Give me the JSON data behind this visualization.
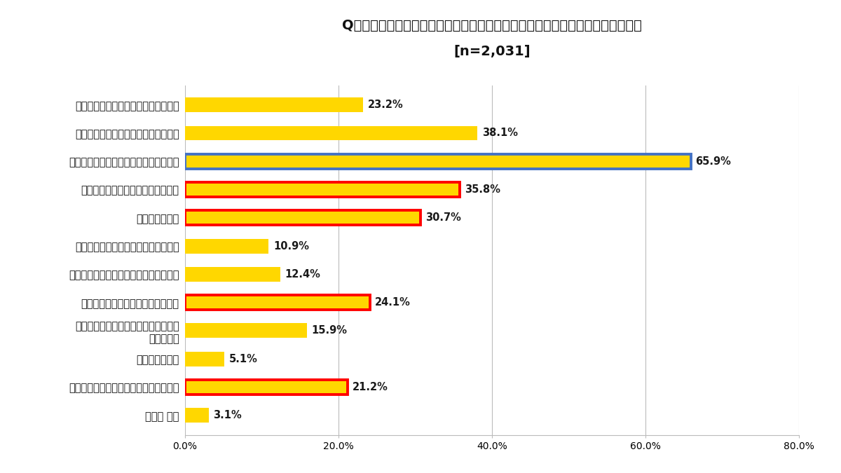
{
  "title_line1": "Q：あなたは、どのような目的でタイミーで副業をしていますか？（複数選択）",
  "title_line2": "[n=2,031]",
  "categories": [
    "副業の収入を、貯蓄や投資に使うため",
    "副業の収入を、趣味や娯楽に使うため",
    "副業の収入を、生活費の足しにするため",
    "空いた時間を効率よく活用するため",
    "気分転換のため",
    "キャリアアップ・スキルアップのため",
    "これまでの経験を別な職場で活かすため",
    "これまで経験がない仕事をするため",
    "働くことを通じて人との交流の機会を\n増やすため",
    "社会貢献のため",
    "適度に体を動かして健康を維持するため",
    "その他 り他"
  ],
  "values": [
    23.2,
    38.1,
    65.9,
    35.8,
    30.7,
    10.9,
    12.4,
    24.1,
    15.9,
    5.1,
    21.2,
    3.1
  ],
  "bar_color": "#FFD700",
  "border_blue": [
    false,
    false,
    true,
    false,
    false,
    false,
    false,
    false,
    false,
    false,
    false,
    false
  ],
  "border_red": [
    false,
    false,
    false,
    true,
    true,
    false,
    false,
    true,
    false,
    false,
    true,
    false
  ],
  "blue_border_color": "#4472C4",
  "red_border_color": "#FF0000",
  "xlim": [
    0,
    80
  ],
  "xticks": [
    0,
    20,
    40,
    60,
    80
  ],
  "xtick_labels": [
    "0.0%",
    "20.0%",
    "40.0%",
    "60.0%",
    "80.0%"
  ],
  "value_label_color": "#1a1a1a",
  "background_color": "#FFFFFF",
  "grid_color": "#BBBBBB",
  "title_fontsize": 14,
  "label_fontsize": 10.5,
  "value_fontsize": 10.5
}
